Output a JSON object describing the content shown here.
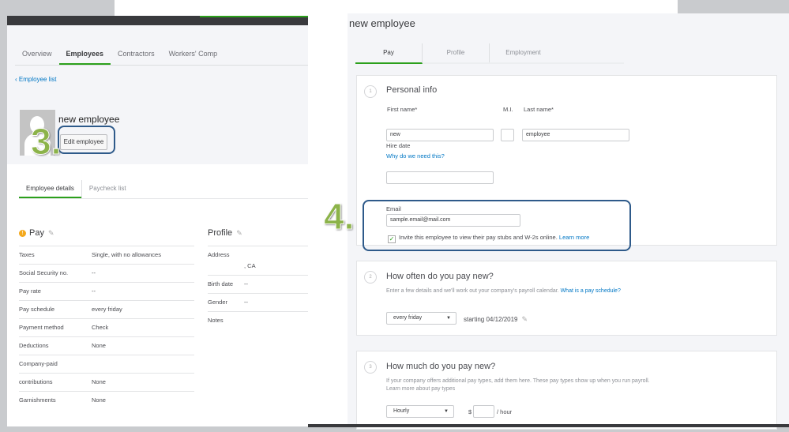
{
  "left": {
    "tabs": [
      "Overview",
      "Employees",
      "Contractors",
      "Workers' Comp"
    ],
    "back_link": "Employee list",
    "employee_name": "new employee",
    "step_marker": "3.",
    "edit_button": "Edit employee",
    "subtabs": [
      "Employee details",
      "Paycheck list"
    ],
    "pay": {
      "title": "Pay",
      "rows": [
        {
          "k": "Taxes",
          "v": "Single, with no allowances"
        },
        {
          "k": "Social Security no.",
          "v": "--"
        },
        {
          "k": "Pay rate",
          "v": "--"
        },
        {
          "k": "Pay schedule",
          "v": "every friday"
        },
        {
          "k": "Payment method",
          "v": "Check"
        },
        {
          "k": "Deductions",
          "v": "None"
        },
        {
          "k": "Company-paid",
          "v": ""
        },
        {
          "k": "contributions",
          "v": "None"
        },
        {
          "k": "Garnishments",
          "v": "None"
        }
      ]
    },
    "profile": {
      "title": "Profile",
      "rows": [
        {
          "k": "Address",
          "v": ", CA"
        },
        {
          "k": "Birth date",
          "v": "--"
        },
        {
          "k": "Gender",
          "v": "--"
        },
        {
          "k": "Notes",
          "v": ""
        }
      ]
    }
  },
  "step_marker_4": "4.",
  "right": {
    "title": "new employee",
    "tabs": [
      "Pay",
      "Profile",
      "Employment"
    ],
    "personal": {
      "num": "1",
      "title": "Personal info",
      "first_label": "First name*",
      "first_value": "new",
      "mi_label": "M.I.",
      "last_label": "Last name*",
      "last_value": "employee",
      "hire_label": "Hire date",
      "hire_link": "Why do we need this?",
      "email_label": "Email",
      "email_value": "sample.email@mail.com",
      "invite_text": "Invite this employee to view their pay stubs and W-2s online.",
      "invite_checked": true,
      "learn_more": "Learn more"
    },
    "schedule": {
      "num": "2",
      "title": "How often do you pay new?",
      "desc": "Enter a few details and we'll work out your company's payroll calendar.",
      "link": "What is a pay schedule?",
      "select": "every friday",
      "starting": "starting 04/12/2019"
    },
    "amount": {
      "num": "3",
      "title": "How much do you pay new?",
      "desc": "If your company offers additional pay types, add them here. These pay types show up when you run payroll.",
      "link": "Learn more about pay types",
      "select": "Hourly",
      "currency": "$",
      "unit": "/ hour"
    }
  },
  "colors": {
    "accent": "#2ca01c",
    "link": "#0077c5",
    "highlight": "#2e5a8a",
    "marker": "#8cb34a"
  }
}
